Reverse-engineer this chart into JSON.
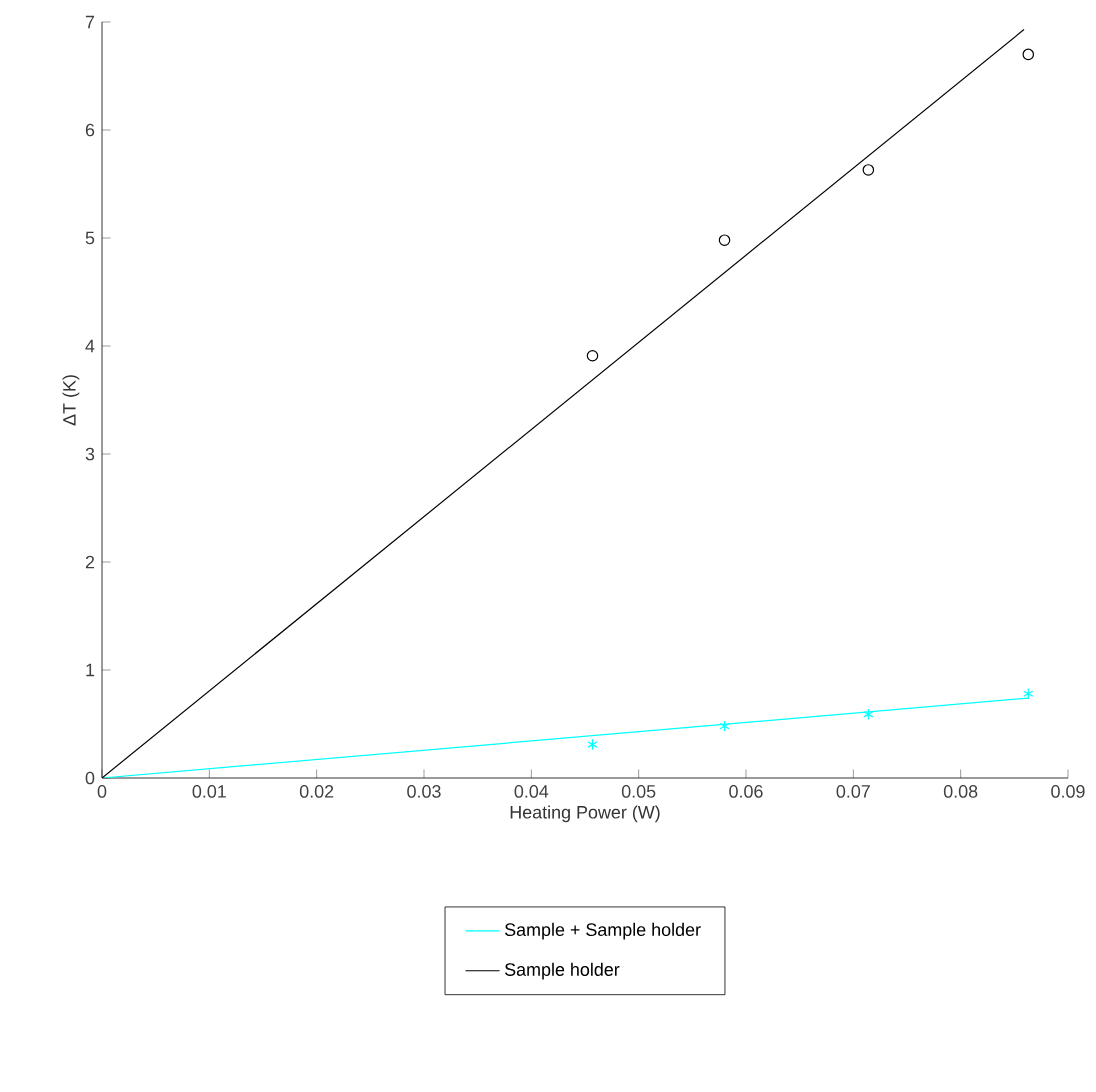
{
  "chart_data": {
    "type": "scatter",
    "xlabel": "Heating Power (W)",
    "ylabel": "ΔT (K)",
    "xlim": [
      0,
      0.09
    ],
    "ylim": [
      0,
      7
    ],
    "xticks": [
      0,
      0.01,
      0.02,
      0.03,
      0.04,
      0.05,
      0.06,
      0.07,
      0.08,
      0.09
    ],
    "yticks": [
      0,
      1,
      2,
      3,
      4,
      5,
      6,
      7
    ],
    "grid": false,
    "legend": "bottom",
    "series": [
      {
        "marker": "cross",
        "color": "#00ffff",
        "x": [
          0.0457,
          0.058,
          0.0714,
          0.0863
        ],
        "values": [
          0.31,
          0.48,
          0.59,
          0.78
        ]
      },
      {
        "marker": "circle",
        "color": "#000000",
        "x": [
          0.0457,
          0.058,
          0.0714,
          0.0863
        ],
        "values": [
          3.91,
          4.98,
          5.63,
          6.7
        ]
      },
      {
        "type": "line",
        "name": "Sample + Sample holder",
        "color": "#00ffff",
        "x": [
          0,
          0.0863
        ],
        "values": [
          0,
          0.74
        ]
      },
      {
        "type": "line",
        "name": "Sample holder",
        "color": "#000000",
        "x": [
          0,
          0.0859
        ],
        "values": [
          0,
          6.93
        ]
      }
    ]
  }
}
